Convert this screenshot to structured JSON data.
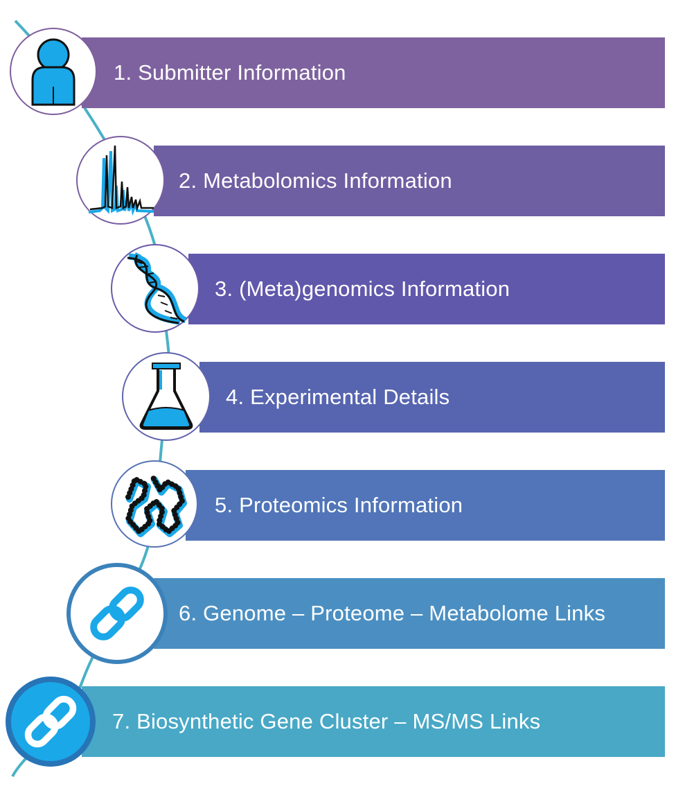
{
  "colors": {
    "curve": "#4ab1c6",
    "icon_blue": "#1aa8e8",
    "icon_black": "#111111",
    "bars": [
      "#7e629f",
      "#6e5ea2",
      "#6058ab",
      "#5765b0",
      "#5175b8",
      "#4b8fc2",
      "#48a8c6"
    ]
  },
  "steps": [
    {
      "label": "1. Submitter Information",
      "icon": "person-icon"
    },
    {
      "label": "2. Metabolomics Information",
      "icon": "spectrum-icon"
    },
    {
      "label": "3. (Meta)genomics Information",
      "icon": "dna-icon"
    },
    {
      "label": "4. Experimental Details",
      "icon": "flask-icon"
    },
    {
      "label": "5. Proteomics Information",
      "icon": "protein-chain-icon"
    },
    {
      "label": "6. Genome – Proteome – Metabolome Links",
      "icon": "link-icon"
    },
    {
      "label": "7. Biosynthetic Gene Cluster – MS/MS Links",
      "icon": "link-icon"
    }
  ]
}
